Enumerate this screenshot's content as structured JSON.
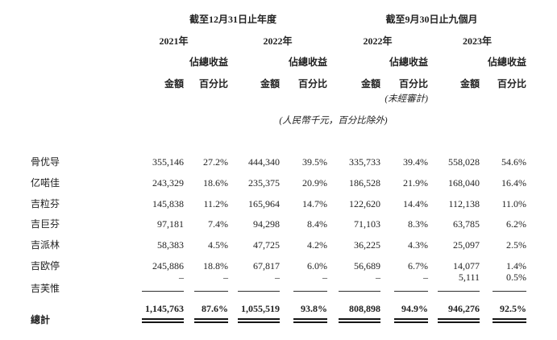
{
  "meta": {
    "background_color": "#ffffff",
    "text_color": "#222222",
    "rule_color": "#2f2f2f"
  },
  "table": {
    "period_headers": [
      {
        "label": "截至12月31日止年度"
      },
      {
        "label": "截至9月30日止九個月"
      }
    ],
    "year_headers": [
      "2021年",
      "2022年",
      "2022年",
      "2023年"
    ],
    "share_header": "佔總收益",
    "amount_header": "金額",
    "percent_header": "百分比",
    "unaudited_note": "(未經審計)",
    "currency_note": "(人民幣千元，百分比除外)",
    "rows": [
      {
        "label": "骨优导",
        "values": [
          "355,146",
          "27.2%",
          "444,340",
          "39.5%",
          "335,733",
          "39.4%",
          "558,028",
          "54.6%"
        ],
        "rule": "none"
      },
      {
        "label": "亿喏佳",
        "values": [
          "243,329",
          "18.6%",
          "235,375",
          "20.9%",
          "186,528",
          "21.9%",
          "168,040",
          "16.4%"
        ],
        "rule": "none"
      },
      {
        "label": "吉粒芬",
        "values": [
          "145,838",
          "11.2%",
          "165,964",
          "14.7%",
          "122,620",
          "14.4%",
          "112,138",
          "11.0%"
        ],
        "rule": "none"
      },
      {
        "label": "吉巨芬",
        "values": [
          "97,181",
          "7.4%",
          "94,298",
          "8.4%",
          "71,103",
          "8.3%",
          "63,785",
          "6.2%"
        ],
        "rule": "none"
      },
      {
        "label": "吉派林",
        "values": [
          "58,383",
          "4.5%",
          "47,725",
          "4.2%",
          "36,225",
          "4.3%",
          "25,097",
          "2.5%"
        ],
        "rule": "none"
      },
      {
        "label": "吉欧停",
        "values": [
          "245,886",
          "18.8%",
          "67,817",
          "6.0%",
          "56,689",
          "6.7%",
          "14,077",
          "1.4%"
        ],
        "rule": "none"
      },
      {
        "label": "吉芙惟",
        "values": [
          "–",
          "–",
          "–",
          "–",
          "–",
          "–",
          "5,111",
          "0.5%"
        ],
        "rule": "single"
      }
    ],
    "total_row": {
      "label": "總計",
      "values": [
        "1,145,763",
        "87.6%",
        "1,055,519",
        "93.8%",
        "808,898",
        "94.9%",
        "946,276",
        "92.5%"
      ],
      "rule": "double"
    }
  }
}
